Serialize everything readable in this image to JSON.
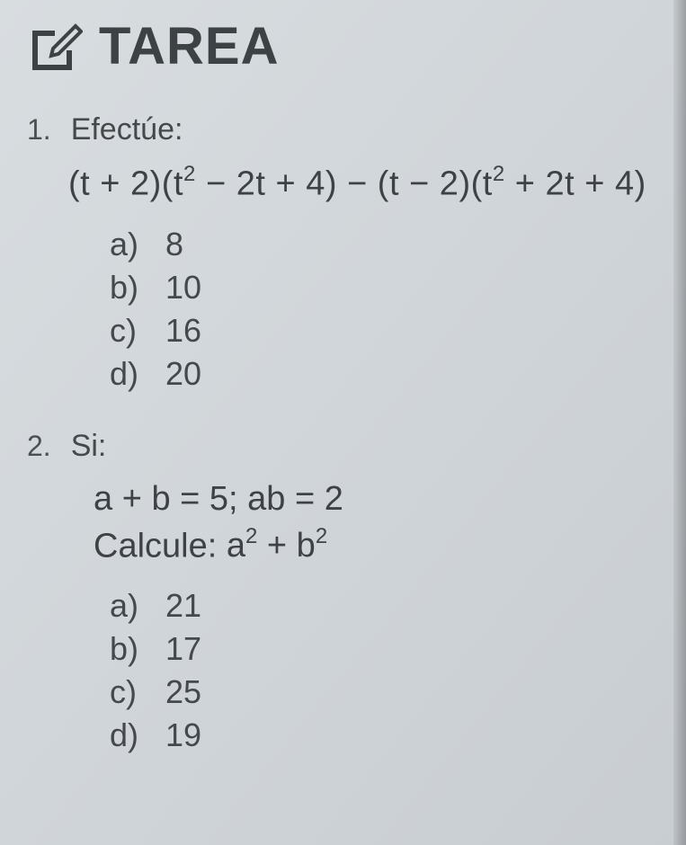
{
  "header": {
    "title": "TAREA",
    "icon_stroke": "#3d4245",
    "icon_stroke_width": 5
  },
  "problems": [
    {
      "number": "1.",
      "prompt": "Efectúe:",
      "expression_html": "(t + 2)(t<sup>2</sup> − 2t + 4) − (t − 2)(t<sup>2</sup> + 2t + 4)",
      "options": [
        {
          "letter": "a)",
          "value": "8"
        },
        {
          "letter": "b)",
          "value": "10"
        },
        {
          "letter": "c)",
          "value": "16"
        },
        {
          "letter": "d)",
          "value": "20"
        }
      ]
    },
    {
      "number": "2.",
      "prompt": "Si:",
      "given": "a + b = 5; ab = 2",
      "calculate_label": "Calcule:",
      "calculate_expr_html": "a<sup>2</sup> + b<sup>2</sup>",
      "options": [
        {
          "letter": "a)",
          "value": "21"
        },
        {
          "letter": "b)",
          "value": "17"
        },
        {
          "letter": "c)",
          "value": "25"
        },
        {
          "letter": "d)",
          "value": "19"
        }
      ]
    }
  ]
}
